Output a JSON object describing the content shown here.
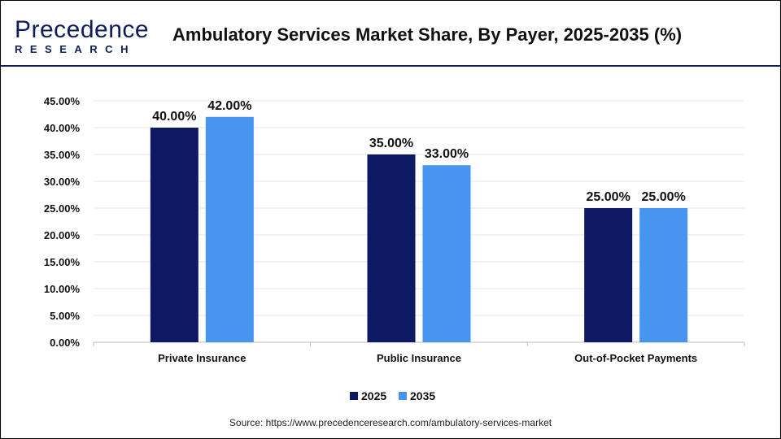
{
  "header": {
    "logo_text_top": "Precedence",
    "logo_text_bottom": "RESEARCH",
    "title": "Ambulatory Services Market Share, By Payer, 2025-2035 (%)"
  },
  "source": "Source: https://www.precedenceresearch.com/ambulatory-services-market",
  "colors": {
    "2025": "#0d1a63",
    "2035": "#4895ef"
  },
  "chart_data": {
    "type": "bar",
    "title": "Ambulatory Services Market Share, By Payer, 2025-2035 (%)",
    "categories": [
      "Private Insurance",
      "Public Insurance",
      "Out-of-Pocket Payments"
    ],
    "series": [
      {
        "name": "2025",
        "values": [
          40,
          35,
          25
        ]
      },
      {
        "name": "2035",
        "values": [
          42,
          33,
          25
        ]
      }
    ],
    "ylim": [
      0,
      45
    ],
    "yticks": [
      "0.00%",
      "5.00%",
      "10.00%",
      "15.00%",
      "20.00%",
      "25.00%",
      "30.00%",
      "35.00%",
      "40.00%",
      "45.00%"
    ],
    "data_labels": [
      [
        "40.00%",
        "35.00%",
        "25.00%"
      ],
      [
        "42.00%",
        "33.00%",
        "25.00%"
      ]
    ],
    "grid": true,
    "legend": "bottom"
  }
}
